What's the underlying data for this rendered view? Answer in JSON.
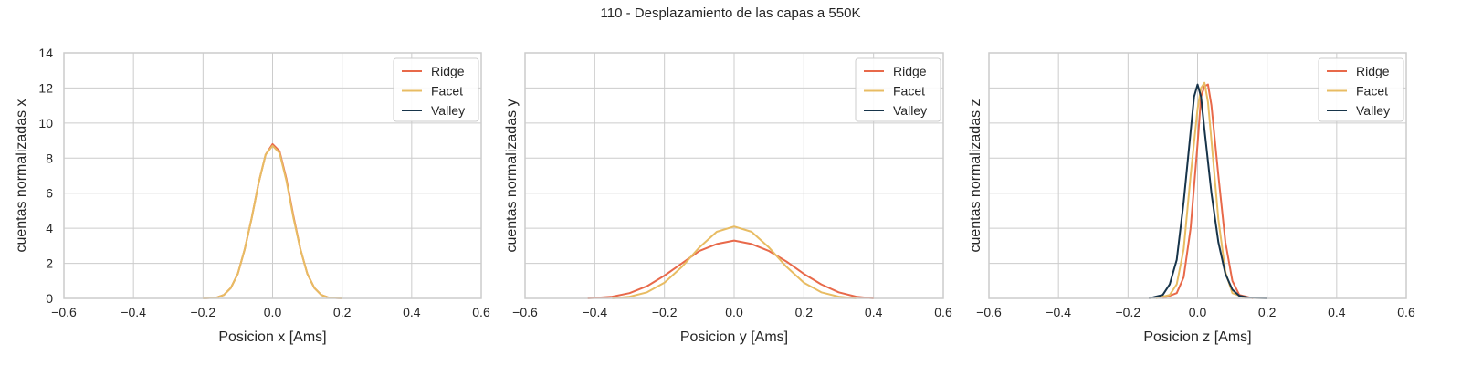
{
  "figure": {
    "suptitle": "110 - Desplazamiento de las capas a 550K"
  },
  "chart_data": [
    {
      "type": "line",
      "title": "",
      "xlabel": "Posicion x [Ams]",
      "ylabel": "cuentas normalizadas x",
      "xlim": [
        -0.6,
        0.6
      ],
      "ylim": [
        0,
        14
      ],
      "xticks": [
        "−0.6",
        "−0.4",
        "−0.2",
        "0.0",
        "0.2",
        "0.4",
        "0.6"
      ],
      "yticks": [
        "0",
        "2",
        "4",
        "6",
        "8",
        "10",
        "12",
        "14"
      ],
      "show_ytick_labels": true,
      "grid": true,
      "legend": "top-right",
      "series": [
        {
          "name": "Ridge",
          "color": "#e8694a",
          "x": [
            -0.2,
            -0.16,
            -0.14,
            -0.12,
            -0.1,
            -0.08,
            -0.06,
            -0.04,
            -0.02,
            0.0,
            0.02,
            0.04,
            0.06,
            0.08,
            0.1,
            0.12,
            0.14,
            0.16,
            0.2
          ],
          "y": [
            0.0,
            0.05,
            0.2,
            0.6,
            1.4,
            2.8,
            4.6,
            6.6,
            8.2,
            8.8,
            8.4,
            6.8,
            4.7,
            2.8,
            1.4,
            0.6,
            0.2,
            0.05,
            0.0
          ]
        },
        {
          "name": "Facet",
          "color": "#e8bc63",
          "x": [
            -0.2,
            -0.16,
            -0.14,
            -0.12,
            -0.1,
            -0.08,
            -0.06,
            -0.04,
            -0.02,
            0.0,
            0.02,
            0.04,
            0.06,
            0.08,
            0.1,
            0.12,
            0.14,
            0.16,
            0.2
          ],
          "y": [
            0.0,
            0.05,
            0.2,
            0.6,
            1.4,
            2.8,
            4.6,
            6.6,
            8.2,
            8.7,
            8.3,
            6.7,
            4.6,
            2.8,
            1.4,
            0.6,
            0.2,
            0.05,
            0.0
          ]
        },
        {
          "name": "Valley",
          "color": "#17344a",
          "x": [],
          "y": []
        }
      ]
    },
    {
      "type": "line",
      "title": "",
      "xlabel": "Posicion y [Ams]",
      "ylabel": "cuentas normalizadas y",
      "xlim": [
        -0.6,
        0.6
      ],
      "ylim": [
        0,
        14
      ],
      "xticks": [
        "−0.6",
        "−0.4",
        "−0.2",
        "0.0",
        "0.2",
        "0.4",
        "0.6"
      ],
      "yticks": [
        "0",
        "2",
        "4",
        "6",
        "8",
        "10",
        "12",
        "14"
      ],
      "show_ytick_labels": false,
      "grid": true,
      "legend": "top-right",
      "series": [
        {
          "name": "Ridge",
          "color": "#e8694a",
          "x": [
            -0.42,
            -0.35,
            -0.3,
            -0.25,
            -0.2,
            -0.15,
            -0.1,
            -0.05,
            0.0,
            0.05,
            0.1,
            0.15,
            0.2,
            0.25,
            0.3,
            0.35,
            0.4
          ],
          "y": [
            0.0,
            0.1,
            0.3,
            0.7,
            1.3,
            2.0,
            2.7,
            3.1,
            3.3,
            3.1,
            2.7,
            2.1,
            1.4,
            0.8,
            0.35,
            0.1,
            0.0
          ]
        },
        {
          "name": "Facet",
          "color": "#e8bc63",
          "x": [
            -0.35,
            -0.3,
            -0.25,
            -0.2,
            -0.15,
            -0.1,
            -0.05,
            0.0,
            0.05,
            0.1,
            0.15,
            0.2,
            0.25,
            0.3,
            0.35
          ],
          "y": [
            0.0,
            0.1,
            0.35,
            0.9,
            1.8,
            2.9,
            3.8,
            4.1,
            3.8,
            2.9,
            1.8,
            0.9,
            0.35,
            0.1,
            0.0
          ]
        },
        {
          "name": "Valley",
          "color": "#17344a",
          "x": [],
          "y": []
        }
      ]
    },
    {
      "type": "line",
      "title": "",
      "xlabel": "Posicion z [Ams]",
      "ylabel": "cuentas normalizadas z",
      "xlim": [
        -0.6,
        0.6
      ],
      "ylim": [
        0,
        14
      ],
      "xticks": [
        "−0.6",
        "−0.4",
        "−0.2",
        "0.0",
        "0.2",
        "0.4",
        "0.6"
      ],
      "yticks": [
        "0",
        "2",
        "4",
        "6",
        "8",
        "10",
        "12",
        "14"
      ],
      "show_ytick_labels": false,
      "grid": true,
      "legend": "top-right",
      "series": [
        {
          "name": "Ridge",
          "color": "#e8694a",
          "x": [
            -0.1,
            -0.06,
            -0.04,
            -0.02,
            0.0,
            0.01,
            0.02,
            0.03,
            0.04,
            0.06,
            0.08,
            0.1,
            0.12,
            0.16
          ],
          "y": [
            0.0,
            0.3,
            1.2,
            4.0,
            8.8,
            11.5,
            12.1,
            12.2,
            11.0,
            7.0,
            3.2,
            1.0,
            0.2,
            0.0
          ]
        },
        {
          "name": "Facet",
          "color": "#e8bc63",
          "x": [
            -0.12,
            -0.08,
            -0.06,
            -0.04,
            -0.02,
            0.0,
            0.01,
            0.02,
            0.03,
            0.04,
            0.06,
            0.08,
            0.1,
            0.14
          ],
          "y": [
            0.0,
            0.2,
            0.8,
            2.8,
            7.0,
            10.8,
            12.0,
            12.3,
            11.2,
            9.0,
            4.5,
            1.5,
            0.3,
            0.0
          ]
        },
        {
          "name": "Valley",
          "color": "#17344a",
          "x": [
            -0.14,
            -0.1,
            -0.08,
            -0.06,
            -0.04,
            -0.02,
            -0.01,
            0.0,
            0.01,
            0.02,
            0.04,
            0.06,
            0.08,
            0.1,
            0.12,
            0.15,
            0.2
          ],
          "y": [
            0.0,
            0.2,
            0.8,
            2.2,
            5.5,
            9.5,
            11.5,
            12.2,
            11.5,
            9.6,
            6.0,
            3.2,
            1.4,
            0.5,
            0.15,
            0.03,
            0.0
          ]
        }
      ]
    }
  ]
}
